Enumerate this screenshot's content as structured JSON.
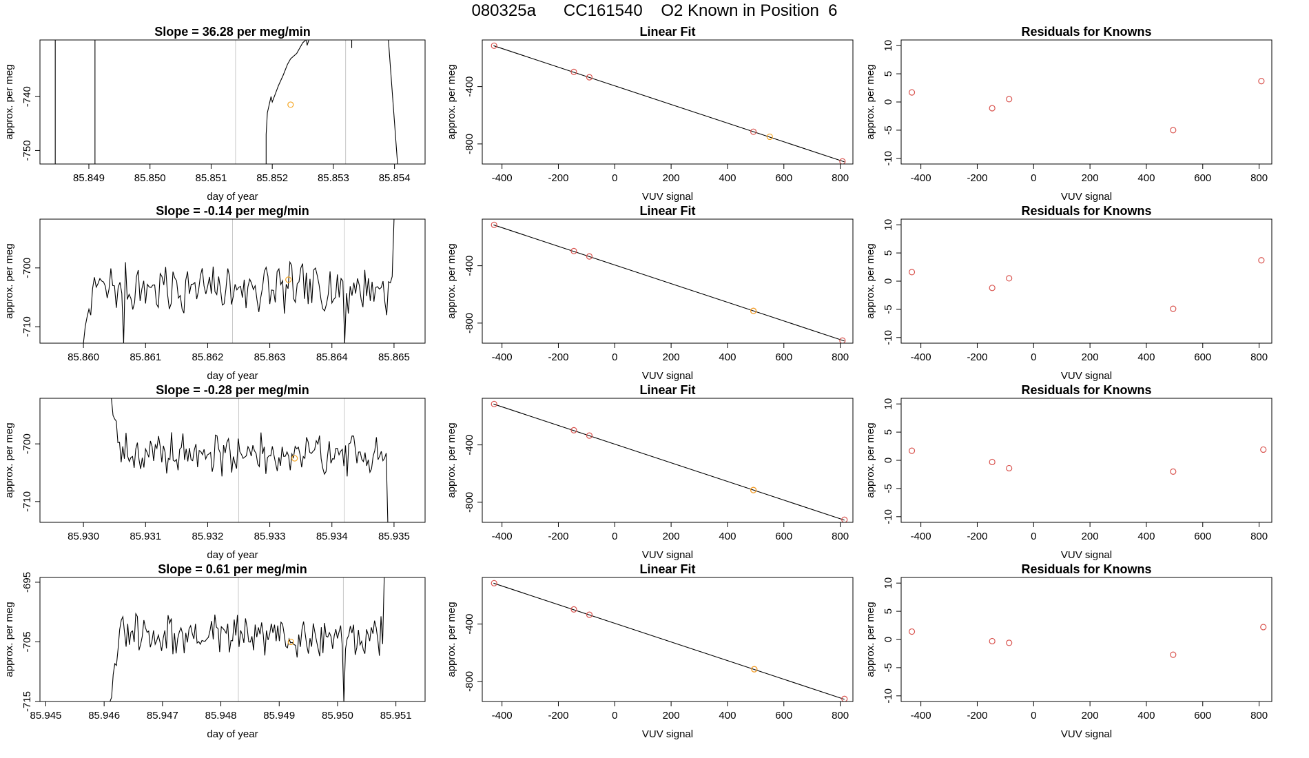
{
  "page": {
    "title": "080325a      CC161540    O2 Known in Position  6"
  },
  "colors": {
    "line": "#000000",
    "point": "#d9544f",
    "highlight": "#f5a623",
    "marker_line": "#c8c8c8"
  },
  "chart_data": [
    {
      "type": "line",
      "panel": "time",
      "row": 0,
      "title": "Slope =  36.28  per meg/min",
      "xlabel": "day of year",
      "ylabel": "approx. per meg",
      "xlim": [
        85.8482,
        85.8545
      ],
      "ylim": [
        -752.5,
        -729.5
      ],
      "xticks": [
        "85.849",
        "85.850",
        "85.851",
        "85.852",
        "85.853",
        "85.854"
      ],
      "yticks": [
        "-740",
        "-750"
      ],
      "xticks_values": [
        85.849,
        85.85,
        85.851,
        85.852,
        85.853,
        85.854
      ],
      "yticks_values": [
        -740,
        -750
      ],
      "marker_lines": [
        85.8514,
        85.8532
      ],
      "highlight": {
        "x": 85.8523,
        "y": -741.5
      },
      "segments": [
        [
          [
            85.84845,
            -752.5
          ],
          [
            85.84845,
            -729.5
          ]
        ],
        [
          [
            85.8491,
            -752.5
          ],
          [
            85.8491,
            -729.5
          ]
        ],
        [
          [
            85.8519,
            -752.5
          ],
          [
            85.8519,
            -747
          ],
          [
            85.85192,
            -743
          ],
          [
            85.85198,
            -740
          ],
          [
            85.852,
            -741
          ],
          [
            85.85205,
            -739.5
          ],
          [
            85.8521,
            -738
          ],
          [
            85.85218,
            -736
          ],
          [
            85.85225,
            -734
          ],
          [
            85.8523,
            -733
          ],
          [
            85.8524,
            -732
          ],
          [
            85.8525,
            -730
          ],
          [
            85.85255,
            -729.5
          ]
        ],
        [
          [
            85.85256,
            -729.5
          ],
          [
            85.85257,
            -730.5
          ],
          [
            85.8526,
            -729.5
          ]
        ],
        [
          [
            85.8533,
            -729.5
          ],
          [
            85.8533,
            -731
          ]
        ],
        [
          [
            85.8539,
            -729.5
          ],
          [
            85.85405,
            -752.5
          ]
        ]
      ]
    },
    {
      "type": "scatter",
      "panel": "fit",
      "row": 0,
      "title": "Linear Fit",
      "xlabel": "VUV signal",
      "ylabel": "approx. per meg",
      "xlim": [
        -470,
        845
      ],
      "ylim": [
        -940,
        -75
      ],
      "xticks": [
        "-400",
        "-200",
        "0",
        "200",
        "400",
        "600",
        "800"
      ],
      "yticks": [
        "-400",
        "-800"
      ],
      "xticks_values": [
        -400,
        -200,
        0,
        200,
        400,
        600,
        800
      ],
      "yticks_values": [
        -400,
        -800
      ],
      "line": [
        [
          -430,
          -115
        ],
        [
          815,
          -925
        ]
      ],
      "points": [
        [
          -428,
          -115
        ],
        [
          -145,
          -298
        ],
        [
          -90,
          -335
        ],
        [
          492,
          -715
        ],
        [
          808,
          -922
        ]
      ],
      "highlight": {
        "x": 550,
        "y": -750
      }
    },
    {
      "type": "scatter",
      "panel": "residuals",
      "row": 0,
      "title": "Residuals for Knowns",
      "xlabel": "VUV signal",
      "ylabel": "approx. per meg",
      "xlim": [
        -470,
        845
      ],
      "ylim": [
        -11,
        11
      ],
      "xticks": [
        "-400",
        "-200",
        "0",
        "200",
        "400",
        "600",
        "800"
      ],
      "yticks": [
        "10",
        "5",
        "0",
        "-5",
        "-10"
      ],
      "xticks_values": [
        -400,
        -200,
        0,
        200,
        400,
        600,
        800
      ],
      "yticks_values": [
        10,
        5,
        0,
        -5,
        -10
      ],
      "points": [
        [
          -432,
          1.7
        ],
        [
          -147,
          -1.1
        ],
        [
          -87,
          0.5
        ],
        [
          495,
          -5.0
        ],
        [
          808,
          3.7
        ]
      ]
    },
    {
      "type": "line",
      "panel": "time",
      "row": 1,
      "title": "Slope =  -0.14  per meg/min",
      "xlabel": "day of year",
      "ylabel": "approx. per meg",
      "xlim": [
        85.8593,
        85.8655
      ],
      "ylim": [
        -712.8,
        -691.7
      ],
      "xticks": [
        "85.860",
        "85.861",
        "85.862",
        "85.863",
        "85.864",
        "85.865"
      ],
      "yticks": [
        "-700",
        "-710"
      ],
      "xticks_values": [
        85.86,
        85.861,
        85.862,
        85.863,
        85.864,
        85.865
      ],
      "yticks_values": [
        -700,
        -710
      ],
      "marker_lines": [
        85.8624,
        85.8642
      ],
      "highlight": {
        "x": 85.8633,
        "y": -702
      },
      "seed": 7,
      "base": -703.5,
      "amp": 3.2,
      "start": [
        85.86,
        -712.8
      ],
      "end": [
        85.865,
        -691.7
      ],
      "dips": [
        [
          85.86065,
          -712.8
        ],
        [
          85.8642,
          -712.8
        ]
      ]
    },
    {
      "type": "scatter",
      "panel": "fit",
      "row": 1,
      "title": "Linear Fit",
      "xlabel": "VUV signal",
      "ylabel": "approx. per meg",
      "xlim": [
        -470,
        845
      ],
      "ylim": [
        -940,
        -75
      ],
      "xticks": [
        "-400",
        "-200",
        "0",
        "200",
        "400",
        "600",
        "800"
      ],
      "yticks": [
        "-400",
        "-800"
      ],
      "xticks_values": [
        -400,
        -200,
        0,
        200,
        400,
        600,
        800
      ],
      "yticks_values": [
        -400,
        -800
      ],
      "line": [
        [
          -430,
          -115
        ],
        [
          815,
          -925
        ]
      ],
      "points": [
        [
          -428,
          -115
        ],
        [
          -145,
          -298
        ],
        [
          -90,
          -335
        ],
        [
          492,
          -715
        ],
        [
          808,
          -922
        ]
      ],
      "highlight": {
        "x": 492,
        "y": -715
      }
    },
    {
      "type": "scatter",
      "panel": "residuals",
      "row": 1,
      "title": "Residuals for Knowns",
      "xlabel": "VUV signal",
      "ylabel": "approx. per meg",
      "xlim": [
        -470,
        845
      ],
      "ylim": [
        -11,
        11
      ],
      "xticks": [
        "-400",
        "-200",
        "0",
        "200",
        "400",
        "600",
        "800"
      ],
      "yticks": [
        "10",
        "5",
        "0",
        "-5",
        "-10"
      ],
      "xticks_values": [
        -400,
        -200,
        0,
        200,
        400,
        600,
        800
      ],
      "yticks_values": [
        10,
        5,
        0,
        -5,
        -10
      ],
      "points": [
        [
          -432,
          1.6
        ],
        [
          -147,
          -1.2
        ],
        [
          -87,
          0.5
        ],
        [
          495,
          -4.9
        ],
        [
          808,
          3.7
        ]
      ]
    },
    {
      "type": "line",
      "panel": "time",
      "row": 2,
      "title": "Slope =  -0.28  per meg/min",
      "xlabel": "day of year",
      "ylabel": "approx. per meg",
      "xlim": [
        85.9293,
        85.9355
      ],
      "ylim": [
        -713.6,
        -692.1
      ],
      "xticks": [
        "85.930",
        "85.931",
        "85.932",
        "85.933",
        "85.934",
        "85.935"
      ],
      "yticks": [
        "-700",
        "-710"
      ],
      "xticks_values": [
        85.93,
        85.931,
        85.932,
        85.933,
        85.934,
        85.935
      ],
      "yticks_values": [
        -700,
        -710
      ],
      "marker_lines": [
        85.9325,
        85.9342
      ],
      "highlight": {
        "x": 85.9334,
        "y": -702.5
      },
      "seed": 19,
      "base": -701.8,
      "amp": 2.7,
      "start": [
        85.93045,
        -692.1
      ],
      "end": [
        85.9349,
        -713.6
      ],
      "dips": []
    },
    {
      "type": "scatter",
      "panel": "fit",
      "row": 2,
      "title": "Linear Fit",
      "xlabel": "VUV signal",
      "ylabel": "approx. per meg",
      "xlim": [
        -470,
        845
      ],
      "ylim": [
        -940,
        -75
      ],
      "xticks": [
        "-400",
        "-200",
        "0",
        "200",
        "400",
        "600",
        "800"
      ],
      "yticks": [
        "-400",
        "-800"
      ],
      "xticks_values": [
        -400,
        -200,
        0,
        200,
        400,
        600,
        800
      ],
      "yticks_values": [
        -400,
        -800
      ],
      "line": [
        [
          -430,
          -115
        ],
        [
          815,
          -925
        ]
      ],
      "points": [
        [
          -428,
          -115
        ],
        [
          -145,
          -298
        ],
        [
          -90,
          -335
        ],
        [
          492,
          -715
        ],
        [
          815,
          -922
        ]
      ],
      "highlight": {
        "x": 492,
        "y": -715
      }
    },
    {
      "type": "scatter",
      "panel": "residuals",
      "row": 2,
      "title": "Residuals for Knowns",
      "xlabel": "VUV signal",
      "ylabel": "approx. per meg",
      "xlim": [
        -470,
        845
      ],
      "ylim": [
        -11,
        11
      ],
      "xticks": [
        "-400",
        "-200",
        "0",
        "200",
        "400",
        "600",
        "800"
      ],
      "yticks": [
        "10",
        "5",
        "0",
        "-5",
        "-10"
      ],
      "xticks_values": [
        -400,
        -200,
        0,
        200,
        400,
        600,
        800
      ],
      "yticks_values": [
        10,
        5,
        0,
        -5,
        -10
      ],
      "points": [
        [
          -432,
          1.7
        ],
        [
          -147,
          -0.3
        ],
        [
          -87,
          -1.4
        ],
        [
          495,
          -2.0
        ],
        [
          815,
          1.9
        ]
      ]
    },
    {
      "type": "line",
      "panel": "time",
      "row": 3,
      "title": "Slope =  0.61  per meg/min",
      "xlabel": "day of year",
      "ylabel": "approx. per meg",
      "xlim": [
        85.9449,
        85.9515
      ],
      "ylim": [
        -715,
        -694.2
      ],
      "xticks": [
        "85.945",
        "85.946",
        "85.947",
        "85.948",
        "85.949",
        "85.950",
        "85.951"
      ],
      "yticks": [
        "-695",
        "-705",
        "-715"
      ],
      "xticks_values": [
        85.945,
        85.946,
        85.947,
        85.948,
        85.949,
        85.95,
        85.951
      ],
      "yticks_values": [
        -695,
        -705,
        -715
      ],
      "marker_lines": [
        85.9483,
        85.9501
      ],
      "highlight": {
        "x": 85.9492,
        "y": -705
      },
      "seed": 31,
      "base": -704.0,
      "amp": 2.8,
      "start": [
        85.9461,
        -715
      ],
      "end": [
        85.9508,
        -694.2
      ],
      "dips": [
        [
          85.9501,
          -715
        ]
      ]
    },
    {
      "type": "scatter",
      "panel": "fit",
      "row": 3,
      "title": "Linear Fit",
      "xlabel": "VUV signal",
      "ylabel": "approx. per meg",
      "xlim": [
        -470,
        845
      ],
      "ylim": [
        -940,
        -75
      ],
      "xticks": [
        "-400",
        "-200",
        "0",
        "200",
        "400",
        "600",
        "800"
      ],
      "yticks": [
        "-400",
        "-800"
      ],
      "xticks_values": [
        -400,
        -200,
        0,
        200,
        400,
        600,
        800
      ],
      "yticks_values": [
        -400,
        -800
      ],
      "line": [
        [
          -430,
          -115
        ],
        [
          815,
          -925
        ]
      ],
      "points": [
        [
          -428,
          -115
        ],
        [
          -145,
          -298
        ],
        [
          -90,
          -335
        ],
        [
          495,
          -715
        ],
        [
          815,
          -922
        ]
      ],
      "highlight": {
        "x": 495,
        "y": -715
      }
    },
    {
      "type": "scatter",
      "panel": "residuals",
      "row": 3,
      "title": "Residuals for Knowns",
      "xlabel": "VUV signal",
      "ylabel": "approx. per meg",
      "xlim": [
        -470,
        845
      ],
      "ylim": [
        -11,
        11
      ],
      "xticks": [
        "-400",
        "-200",
        "0",
        "200",
        "400",
        "600",
        "800"
      ],
      "yticks": [
        "10",
        "5",
        "0",
        "-5",
        "-10"
      ],
      "xticks_values": [
        -400,
        -200,
        0,
        200,
        400,
        600,
        800
      ],
      "yticks_values": [
        10,
        5,
        0,
        -5,
        -10
      ],
      "points": [
        [
          -432,
          1.4
        ],
        [
          -147,
          -0.3
        ],
        [
          -87,
          -0.6
        ],
        [
          495,
          -2.7
        ],
        [
          815,
          2.2
        ]
      ]
    }
  ]
}
